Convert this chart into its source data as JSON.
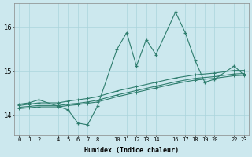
{
  "xlabel": "Humidex (Indice chaleur)",
  "x_ticks": [
    0,
    1,
    2,
    4,
    5,
    6,
    7,
    8,
    10,
    11,
    12,
    13,
    14,
    16,
    17,
    18,
    19,
    20,
    22,
    23
  ],
  "x_tick_labels": [
    "0",
    "1",
    "2",
    "4",
    "5",
    "6",
    "7",
    "8",
    "10",
    "11",
    "12",
    "13",
    "14",
    "16",
    "17",
    "18",
    "19",
    "20",
    "22",
    "23"
  ],
  "ylim": [
    13.55,
    16.55
  ],
  "yticks": [
    14,
    15,
    16
  ],
  "background_color": "#cce8ee",
  "grid_color": "#aad4dc",
  "line_color": "#2e7d6e",
  "line1_x": [
    0,
    1,
    2,
    4,
    5,
    6,
    7,
    8,
    10,
    11,
    12,
    13,
    14,
    16,
    17,
    18,
    19,
    20,
    22,
    23
  ],
  "line1_y": [
    14.25,
    14.28,
    14.35,
    14.2,
    14.12,
    13.82,
    13.78,
    14.2,
    15.5,
    15.88,
    15.12,
    15.72,
    15.38,
    16.35,
    15.88,
    15.25,
    14.75,
    14.82,
    15.12,
    14.92
  ],
  "line2_x": [
    0,
    1,
    2,
    4,
    5,
    6,
    7,
    8,
    10,
    12,
    14,
    16,
    18,
    20,
    22,
    23
  ],
  "line2_y": [
    14.22,
    14.25,
    14.28,
    14.28,
    14.32,
    14.35,
    14.38,
    14.42,
    14.55,
    14.65,
    14.75,
    14.85,
    14.92,
    14.96,
    15.02,
    15.02
  ],
  "line3_x": [
    0,
    1,
    2,
    4,
    5,
    6,
    7,
    8,
    10,
    12,
    14,
    16,
    18,
    20,
    22,
    23
  ],
  "line3_y": [
    14.18,
    14.2,
    14.22,
    14.22,
    14.25,
    14.27,
    14.3,
    14.34,
    14.46,
    14.56,
    14.66,
    14.76,
    14.84,
    14.88,
    14.94,
    14.95
  ],
  "line4_x": [
    0,
    1,
    2,
    4,
    5,
    6,
    7,
    8,
    10,
    12,
    14,
    16,
    18,
    20,
    22,
    23
  ],
  "line4_y": [
    14.15,
    14.17,
    14.19,
    14.19,
    14.22,
    14.24,
    14.27,
    14.3,
    14.42,
    14.52,
    14.62,
    14.72,
    14.8,
    14.84,
    14.9,
    14.91
  ]
}
